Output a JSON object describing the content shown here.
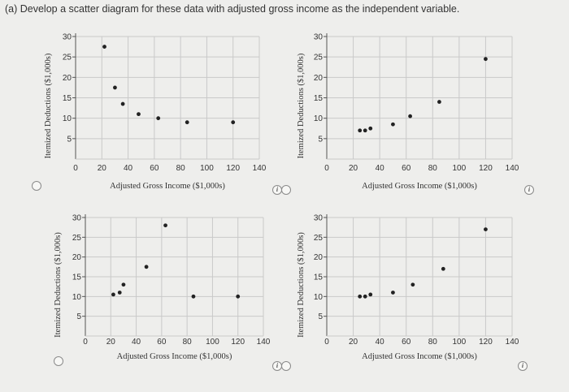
{
  "question": "(a) Develop a scatter diagram for these data with adjusted gross income as the independent variable.",
  "icons": {
    "radio": "radio-button",
    "info": "info-icon"
  },
  "colors": {
    "point": "#222222",
    "grid": "#c9c9c9",
    "axis": "#555555"
  },
  "chart_data": [
    {
      "type": "scatter",
      "xlabel": "Adjusted Gross Income ($1,000s)",
      "ylabel": "Itemized Deductions ($1,000s)",
      "xlim": [
        0,
        140
      ],
      "ylim": [
        0,
        30
      ],
      "xticks": [
        0,
        20,
        40,
        60,
        80,
        100,
        120,
        140
      ],
      "yticks": [
        5,
        10,
        15,
        20,
        25,
        30
      ],
      "grid": true,
      "x": [
        22,
        30,
        36,
        48,
        63,
        85,
        120
      ],
      "y": [
        27.5,
        17.5,
        13.5,
        11,
        10,
        9,
        9
      ]
    },
    {
      "type": "scatter",
      "xlabel": "Adjusted Gross Income ($1,000s)",
      "ylabel": "Itemized Deductions ($1,000s)",
      "xlim": [
        0,
        140
      ],
      "ylim": [
        0,
        30
      ],
      "xticks": [
        0,
        20,
        40,
        60,
        80,
        100,
        120,
        140
      ],
      "yticks": [
        5,
        10,
        15,
        20,
        25,
        30
      ],
      "grid": true,
      "x": [
        25,
        29,
        33,
        50,
        63,
        85,
        120
      ],
      "y": [
        7,
        7,
        7.5,
        8.5,
        10.5,
        14,
        24.5
      ]
    },
    {
      "type": "scatter",
      "xlabel": "Adjusted Gross Income ($1,000s)",
      "ylabel": "Itemized Deductions ($1,000s)",
      "xlim": [
        0,
        140
      ],
      "ylim": [
        0,
        30
      ],
      "xticks": [
        0,
        20,
        40,
        60,
        80,
        100,
        120,
        140
      ],
      "yticks": [
        5,
        10,
        15,
        20,
        25,
        30
      ],
      "grid": true,
      "x": [
        22,
        27,
        30,
        48,
        63,
        85,
        120
      ],
      "y": [
        10.5,
        11,
        13,
        17.5,
        28,
        10,
        10
      ]
    },
    {
      "type": "scatter",
      "xlabel": "Adjusted Gross Income ($1,000s)",
      "ylabel": "Itemized Deductions ($1,000s)",
      "xlim": [
        0,
        140
      ],
      "ylim": [
        0,
        30
      ],
      "xticks": [
        0,
        20,
        40,
        60,
        80,
        100,
        120,
        140
      ],
      "yticks": [
        5,
        10,
        15,
        20,
        25,
        30
      ],
      "grid": true,
      "x": [
        25,
        29,
        33,
        50,
        65,
        88,
        120
      ],
      "y": [
        10,
        10,
        10.5,
        11,
        13,
        17,
        27
      ]
    }
  ]
}
